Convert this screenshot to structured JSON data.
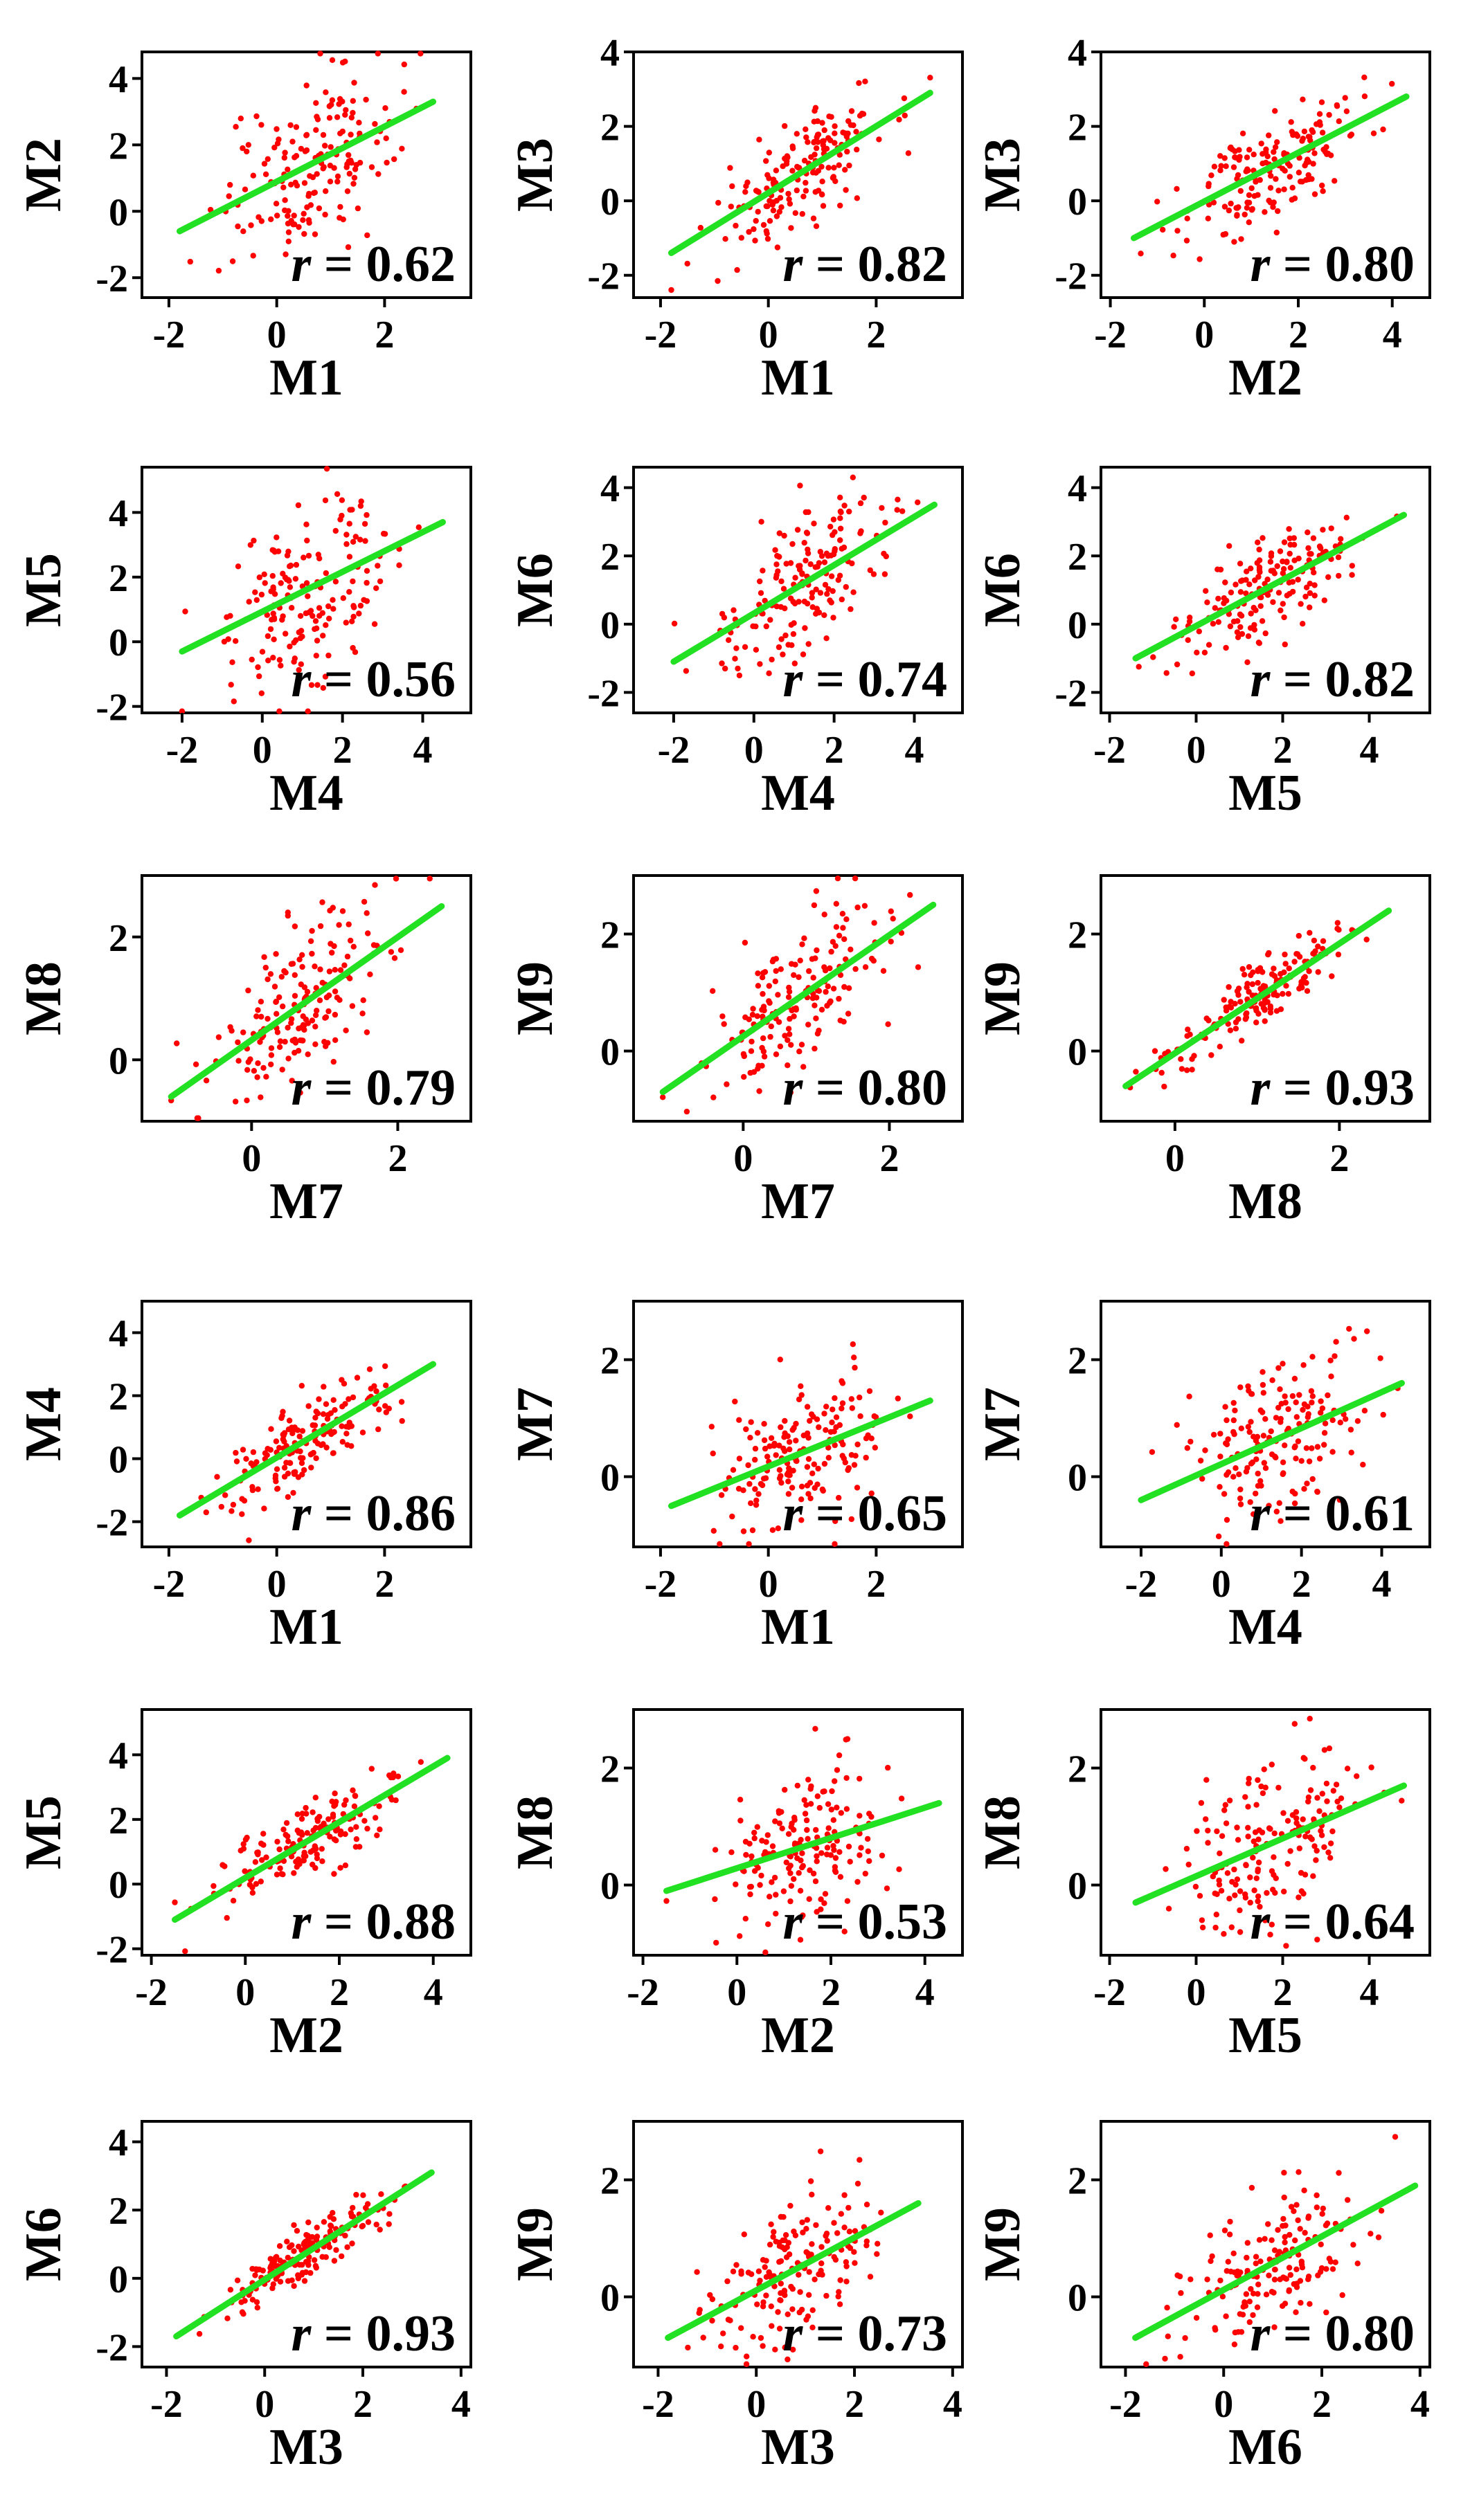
{
  "colors": {
    "points": "#ff0000",
    "fit_line": "#22e022",
    "axes": "#000000",
    "background": "#ffffff"
  },
  "chart_data": [
    {
      "type": "scatter",
      "xlabel": "M1",
      "ylabel": "M2",
      "r_prefix": "r",
      "r_value": "= 0.62",
      "xlim": [
        -2.5,
        3.6
      ],
      "ylim": [
        -2.6,
        4.8
      ],
      "xticks": [
        "-2",
        "0",
        "2"
      ],
      "yticks": [
        "-2",
        "0",
        "2",
        "4"
      ],
      "fit": [
        [
          -1.8,
          -0.6
        ],
        [
          2.9,
          3.3
        ]
      ],
      "x_range": [
        -1.8,
        2.9
      ],
      "r": 0.62
    },
    {
      "type": "scatter",
      "xlabel": "M1",
      "ylabel": "M3",
      "r_prefix": "r",
      "r_value": "= 0.82",
      "xlim": [
        -2.5,
        3.6
      ],
      "ylim": [
        -2.6,
        4.0
      ],
      "xticks": [
        "-2",
        "0",
        "2"
      ],
      "yticks": [
        "-2",
        "0",
        "2",
        "4"
      ],
      "fit": [
        [
          -1.8,
          -1.4
        ],
        [
          3.0,
          2.9
        ]
      ],
      "x_range": [
        -1.8,
        3.0
      ],
      "r": 0.82
    },
    {
      "type": "scatter",
      "xlabel": "M2",
      "ylabel": "M3",
      "r_prefix": "r",
      "r_value": "= 0.80",
      "xlim": [
        -2.2,
        4.8
      ],
      "ylim": [
        -2.6,
        4.0
      ],
      "xticks": [
        "-2",
        "0",
        "2",
        "4"
      ],
      "yticks": [
        "-2",
        "0",
        "2",
        "4"
      ],
      "fit": [
        [
          -1.5,
          -1.0
        ],
        [
          4.3,
          2.8
        ]
      ],
      "x_range": [
        -1.5,
        4.3
      ],
      "r": 0.8
    },
    {
      "type": "scatter",
      "xlabel": "M4",
      "ylabel": "M5",
      "r_prefix": "r",
      "r_value": "= 0.56",
      "xlim": [
        -3.0,
        5.2
      ],
      "ylim": [
        -2.2,
        5.4
      ],
      "xticks": [
        "-2",
        "0",
        "2",
        "4"
      ],
      "yticks": [
        "-2",
        "0",
        "2",
        "4"
      ],
      "fit": [
        [
          -2.0,
          -0.3
        ],
        [
          4.5,
          3.7
        ]
      ],
      "x_range": [
        -2.0,
        4.5
      ],
      "r": 0.56
    },
    {
      "type": "scatter",
      "xlabel": "M4",
      "ylabel": "M6",
      "r_prefix": "r",
      "r_value": "= 0.74",
      "xlim": [
        -3.0,
        5.2
      ],
      "ylim": [
        -2.6,
        4.6
      ],
      "xticks": [
        "-2",
        "0",
        "2",
        "4"
      ],
      "yticks": [
        "-2",
        "0",
        "2",
        "4"
      ],
      "fit": [
        [
          -2.0,
          -1.1
        ],
        [
          4.5,
          3.5
        ]
      ],
      "x_range": [
        -2.0,
        4.5
      ],
      "r": 0.74
    },
    {
      "type": "scatter",
      "xlabel": "M5",
      "ylabel": "M6",
      "r_prefix": "r",
      "r_value": "= 0.82",
      "xlim": [
        -2.2,
        5.4
      ],
      "ylim": [
        -2.6,
        4.6
      ],
      "xticks": [
        "-2",
        "0",
        "2",
        "4"
      ],
      "yticks": [
        "-2",
        "0",
        "2",
        "4"
      ],
      "fit": [
        [
          -1.4,
          -1.0
        ],
        [
          4.8,
          3.2
        ]
      ],
      "x_range": [
        -1.4,
        4.8
      ],
      "r": 0.82
    },
    {
      "type": "scatter",
      "xlabel": "M7",
      "ylabel": "M8",
      "r_prefix": "r",
      "r_value": "= 0.79",
      "xlim": [
        -1.5,
        3.0
      ],
      "ylim": [
        -1.0,
        3.0
      ],
      "xticks": [
        "0",
        "2"
      ],
      "yticks": [
        "0",
        "2"
      ],
      "fit": [
        [
          -1.1,
          -0.6
        ],
        [
          2.6,
          2.5
        ]
      ],
      "x_range": [
        -1.1,
        2.6
      ],
      "r": 0.79
    },
    {
      "type": "scatter",
      "xlabel": "M7",
      "ylabel": "M9",
      "r_prefix": "r",
      "r_value": "= 0.80",
      "xlim": [
        -1.5,
        3.0
      ],
      "ylim": [
        -1.2,
        3.0
      ],
      "xticks": [
        "0",
        "2"
      ],
      "yticks": [
        "0",
        "2"
      ],
      "fit": [
        [
          -1.1,
          -0.7
        ],
        [
          2.6,
          2.5
        ]
      ],
      "x_range": [
        -1.1,
        2.6
      ],
      "r": 0.8
    },
    {
      "type": "scatter",
      "xlabel": "M8",
      "ylabel": "M9",
      "r_prefix": "r",
      "r_value": "= 0.93",
      "xlim": [
        -0.9,
        3.1
      ],
      "ylim": [
        -1.2,
        3.0
      ],
      "xticks": [
        "0",
        "2"
      ],
      "yticks": [
        "0",
        "2"
      ],
      "fit": [
        [
          -0.6,
          -0.6
        ],
        [
          2.6,
          2.4
        ]
      ],
      "x_range": [
        -0.6,
        2.6
      ],
      "r": 0.93
    },
    {
      "type": "scatter",
      "xlabel": "M1",
      "ylabel": "M4",
      "r_prefix": "r",
      "r_value": "= 0.86",
      "xlim": [
        -2.5,
        3.6
      ],
      "ylim": [
        -2.8,
        5.0
      ],
      "xticks": [
        "-2",
        "0",
        "2"
      ],
      "yticks": [
        "-2",
        "0",
        "2",
        "4"
      ],
      "fit": [
        [
          -1.8,
          -1.8
        ],
        [
          2.9,
          3.0
        ]
      ],
      "x_range": [
        -1.8,
        2.9
      ],
      "r": 0.86
    },
    {
      "type": "scatter",
      "xlabel": "M1",
      "ylabel": "M7",
      "r_prefix": "r",
      "r_value": "= 0.65",
      "xlim": [
        -2.5,
        3.6
      ],
      "ylim": [
        -1.2,
        3.0
      ],
      "xticks": [
        "-2",
        "0",
        "2"
      ],
      "yticks": [
        "0",
        "2"
      ],
      "fit": [
        [
          -1.8,
          -0.5
        ],
        [
          3.0,
          1.3
        ]
      ],
      "x_range": [
        -1.8,
        3.0
      ],
      "r": 0.65
    },
    {
      "type": "scatter",
      "xlabel": "M4",
      "ylabel": "M7",
      "r_prefix": "r",
      "r_value": "= 0.61",
      "xlim": [
        -3.0,
        5.2
      ],
      "ylim": [
        -1.2,
        3.0
      ],
      "xticks": [
        "-2",
        "0",
        "2",
        "4"
      ],
      "yticks": [
        "0",
        "2"
      ],
      "fit": [
        [
          -2.0,
          -0.4
        ],
        [
          4.5,
          1.6
        ]
      ],
      "x_range": [
        -2.0,
        4.5
      ],
      "r": 0.61
    },
    {
      "type": "scatter",
      "xlabel": "M2",
      "ylabel": "M5",
      "r_prefix": "r",
      "r_value": "= 0.88",
      "xlim": [
        -2.2,
        4.8
      ],
      "ylim": [
        -2.2,
        5.4
      ],
      "xticks": [
        "-2",
        "0",
        "2",
        "4"
      ],
      "yticks": [
        "-2",
        "0",
        "2",
        "4"
      ],
      "fit": [
        [
          -1.5,
          -1.1
        ],
        [
          4.3,
          3.9
        ]
      ],
      "x_range": [
        -1.5,
        4.3
      ],
      "r": 0.88
    },
    {
      "type": "scatter",
      "xlabel": "M2",
      "ylabel": "M8",
      "r_prefix": "r",
      "r_value": "= 0.53",
      "xlim": [
        -2.2,
        4.8
      ],
      "ylim": [
        -1.2,
        3.0
      ],
      "xticks": [
        "-2",
        "0",
        "2",
        "4"
      ],
      "yticks": [
        "0",
        "2"
      ],
      "fit": [
        [
          -1.5,
          -0.1
        ],
        [
          4.3,
          1.4
        ]
      ],
      "x_range": [
        -1.5,
        4.3
      ],
      "r": 0.53
    },
    {
      "type": "scatter",
      "xlabel": "M5",
      "ylabel": "M8",
      "r_prefix": "r",
      "r_value": "= 0.64",
      "xlim": [
        -2.2,
        5.4
      ],
      "ylim": [
        -1.2,
        3.0
      ],
      "xticks": [
        "-2",
        "0",
        "2",
        "4"
      ],
      "yticks": [
        "0",
        "2"
      ],
      "fit": [
        [
          -1.4,
          -0.3
        ],
        [
          4.8,
          1.7
        ]
      ],
      "x_range": [
        -1.4,
        4.8
      ],
      "r": 0.64
    },
    {
      "type": "scatter",
      "xlabel": "M3",
      "ylabel": "M6",
      "r_prefix": "r",
      "r_value": "= 0.93",
      "xlim": [
        -2.5,
        4.2
      ],
      "ylim": [
        -2.6,
        4.6
      ],
      "xticks": [
        "-2",
        "0",
        "2",
        "4"
      ],
      "yticks": [
        "-2",
        "0",
        "2",
        "4"
      ],
      "fit": [
        [
          -1.8,
          -1.7
        ],
        [
          3.4,
          3.1
        ]
      ],
      "x_range": [
        -1.8,
        3.4
      ],
      "r": 0.93
    },
    {
      "type": "scatter",
      "xlabel": "M3",
      "ylabel": "M9",
      "r_prefix": "r",
      "r_value": "= 0.73",
      "xlim": [
        -2.5,
        4.2
      ],
      "ylim": [
        -1.2,
        3.0
      ],
      "xticks": [
        "-2",
        "0",
        "2",
        "4"
      ],
      "yticks": [
        "0",
        "2"
      ],
      "fit": [
        [
          -1.8,
          -0.7
        ],
        [
          3.3,
          1.6
        ]
      ],
      "x_range": [
        -1.8,
        3.3
      ],
      "r": 0.73
    },
    {
      "type": "scatter",
      "xlabel": "M6",
      "ylabel": "M9",
      "r_prefix": "r",
      "r_value": "= 0.80",
      "xlim": [
        -2.5,
        4.2
      ],
      "ylim": [
        -1.2,
        3.0
      ],
      "xticks": [
        "-2",
        "0",
        "2",
        "4"
      ],
      "yticks": [
        "0",
        "2"
      ],
      "fit": [
        [
          -1.8,
          -0.7
        ],
        [
          3.9,
          1.9
        ]
      ],
      "x_range": [
        -1.8,
        3.9
      ],
      "r": 0.8
    }
  ]
}
